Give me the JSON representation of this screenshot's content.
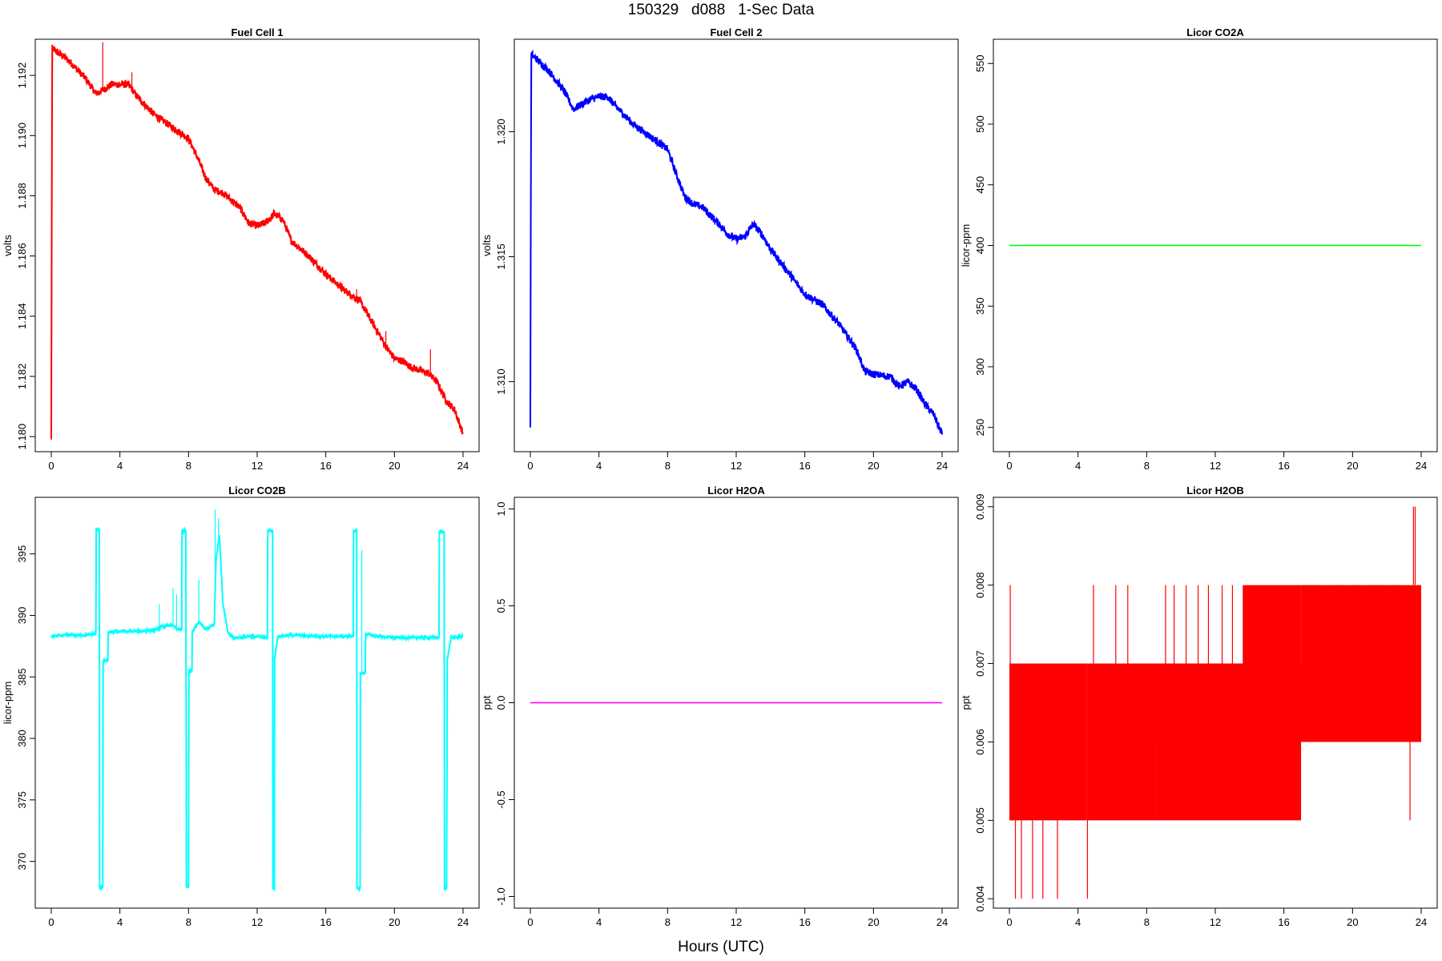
{
  "figure": {
    "title": "150329   d088   1-Sec Data",
    "xlabel": "Hours (UTC)"
  },
  "chart_data": [
    {
      "type": "line",
      "title": "Fuel Cell 1",
      "ylabel": "volts",
      "xlim": [
        0,
        24
      ],
      "ylim": [
        1.1795,
        1.1932
      ],
      "xticks": [
        0,
        4,
        8,
        12,
        16,
        20,
        24
      ],
      "yticks": [
        1.18,
        1.182,
        1.184,
        1.186,
        1.188,
        1.19,
        1.192
      ],
      "ytick_labels": [
        "1.180",
        "1.182",
        "1.184",
        "1.186",
        "1.188",
        "1.190",
        "1.192"
      ],
      "color": "#ff0000",
      "noise": 0.00012,
      "series": [
        {
          "x": [
            0,
            0.05,
            1,
            2,
            2.6,
            3,
            3.5,
            4,
            4.5,
            5,
            6,
            7,
            8,
            8.5,
            9,
            9.5,
            10,
            11,
            11.5,
            12,
            12.5,
            13,
            13.5,
            14,
            15,
            16,
            17,
            18,
            19,
            19.5,
            20,
            20.5,
            21,
            22,
            22.5,
            23,
            23.5,
            24
          ],
          "y": [
            1.1799,
            1.1929,
            1.1925,
            1.1919,
            1.1914,
            1.1915,
            1.1917,
            1.1917,
            1.1917,
            1.1913,
            1.1907,
            1.1903,
            1.1899,
            1.1893,
            1.1886,
            1.1882,
            1.1881,
            1.1876,
            1.1871,
            1.187,
            1.1871,
            1.1874,
            1.1872,
            1.1865,
            1.186,
            1.1854,
            1.1849,
            1.1845,
            1.1835,
            1.183,
            1.1826,
            1.1825,
            1.1823,
            1.1821,
            1.1818,
            1.1812,
            1.1809,
            1.1801
          ]
        }
      ],
      "spikes": [
        {
          "x": 3.0,
          "y": 1.1931
        },
        {
          "x": 4.7,
          "y": 1.1921
        },
        {
          "x": 19.5,
          "y": 1.1835
        },
        {
          "x": 22.1,
          "y": 1.1829
        },
        {
          "x": 17.8,
          "y": 1.1849
        }
      ]
    },
    {
      "type": "line",
      "title": "Fuel Cell 2",
      "ylabel": "volts",
      "xlim": [
        0,
        24
      ],
      "ylim": [
        1.3072,
        1.3237
      ],
      "xticks": [
        0,
        4,
        8,
        12,
        16,
        20,
        24
      ],
      "yticks": [
        1.31,
        1.315,
        1.32
      ],
      "ytick_labels": [
        "1.310",
        "1.315",
        "1.320"
      ],
      "color": "#0000ff",
      "noise": 0.00015,
      "series": [
        {
          "x": [
            0,
            0.05,
            1,
            2,
            2.5,
            3,
            3.5,
            4,
            4.5,
            5,
            6,
            7,
            8,
            8.5,
            9,
            9.5,
            10,
            11,
            11.5,
            12,
            12.5,
            13,
            13.5,
            14,
            15,
            16,
            17,
            18,
            19,
            19.5,
            20,
            21,
            21.5,
            22,
            22.5,
            23,
            23.5,
            24
          ],
          "y": [
            1.3083,
            1.3231,
            1.3225,
            1.3216,
            1.3209,
            1.3211,
            1.3213,
            1.3214,
            1.3214,
            1.321,
            1.3203,
            1.3198,
            1.3193,
            1.3183,
            1.3174,
            1.3171,
            1.317,
            1.3163,
            1.3159,
            1.3157,
            1.3158,
            1.3163,
            1.3159,
            1.3153,
            1.3144,
            1.3135,
            1.3131,
            1.3123,
            1.3113,
            1.3104,
            1.3103,
            1.3102,
            1.3098,
            1.31,
            1.3097,
            1.3091,
            1.3087,
            1.3079
          ]
        }
      ],
      "spikes": []
    },
    {
      "type": "line",
      "title": "Licor CO2A",
      "ylabel": "licor-ppm",
      "xlim": [
        0,
        24
      ],
      "ylim": [
        230,
        570
      ],
      "xticks": [
        0,
        4,
        8,
        12,
        16,
        20,
        24
      ],
      "yticks": [
        250,
        300,
        350,
        400,
        450,
        500,
        550
      ],
      "ytick_labels": [
        "250",
        "300",
        "350",
        "400",
        "450",
        "500",
        "550"
      ],
      "color": "#00ff00",
      "noise": 0,
      "series": [
        {
          "x": [
            0,
            24
          ],
          "y": [
            400,
            400
          ]
        }
      ],
      "spikes": []
    },
    {
      "type": "line",
      "title": "Licor CO2B",
      "ylabel": "licor-ppm",
      "xlim": [
        0,
        24
      ],
      "ylim": [
        366.2,
        399.6
      ],
      "xticks": [
        0,
        4,
        8,
        12,
        16,
        20,
        24
      ],
      "yticks": [
        370,
        375,
        380,
        385,
        390,
        395
      ],
      "ytick_labels": [
        "370",
        "375",
        "380",
        "385",
        "390",
        "395"
      ],
      "color": "#00ffff",
      "noise": 0.12,
      "series": [
        {
          "x": [
            0,
            1,
            2,
            2.6,
            2.62,
            2.8,
            2.82,
            3.0,
            3.02,
            3.3,
            3.32,
            4,
            5,
            6,
            6.5,
            7,
            7.5,
            7.6,
            7.62,
            7.85,
            7.87,
            8.0,
            8.02,
            8.2,
            8.22,
            8.6,
            9,
            9.5,
            9.6,
            9.8,
            10,
            10.3,
            10.6,
            11,
            12,
            12.6,
            12.62,
            12.9,
            12.92,
            13.0,
            13.02,
            13.2,
            14,
            16,
            17,
            17.6,
            17.62,
            17.8,
            17.82,
            18.0,
            18.02,
            18.3,
            18.32,
            19,
            20,
            21,
            22,
            22.6,
            22.62,
            22.9,
            22.92,
            23.05,
            23.07,
            23.3,
            24
          ],
          "y": [
            388.3,
            388.4,
            388.4,
            388.5,
            397.0,
            397.0,
            367.9,
            367.9,
            386.3,
            386.3,
            388.6,
            388.7,
            388.7,
            388.8,
            389.1,
            389.2,
            388.8,
            388.8,
            396.9,
            396.9,
            367.9,
            367.9,
            385.5,
            385.5,
            388.7,
            389.5,
            388.9,
            389.3,
            394.5,
            396.5,
            391.0,
            388.6,
            388.2,
            388.2,
            388.3,
            388.2,
            396.9,
            396.9,
            367.8,
            367.8,
            386.5,
            388.3,
            388.4,
            388.3,
            388.3,
            388.3,
            396.9,
            396.9,
            367.8,
            367.8,
            385.3,
            385.3,
            388.5,
            388.3,
            388.2,
            388.2,
            388.2,
            388.2,
            396.8,
            396.8,
            367.8,
            367.8,
            386.3,
            388.2,
            388.3
          ]
        }
      ],
      "spikes": [
        {
          "x": 6.3,
          "y": 390.9
        },
        {
          "x": 7.1,
          "y": 392.2
        },
        {
          "x": 7.3,
          "y": 391.7
        },
        {
          "x": 8.6,
          "y": 392.9
        },
        {
          "x": 9.55,
          "y": 398.6
        },
        {
          "x": 9.75,
          "y": 397.9
        },
        {
          "x": 18.1,
          "y": 395.3
        }
      ]
    },
    {
      "type": "line",
      "title": "Licor H2OA",
      "ylabel": "ppt",
      "xlim": [
        0,
        24
      ],
      "ylim": [
        -1.06,
        1.06
      ],
      "xticks": [
        0,
        4,
        8,
        12,
        16,
        20,
        24
      ],
      "yticks": [
        -1.0,
        -0.5,
        0.0,
        0.5,
        1.0
      ],
      "ytick_labels": [
        "-1.0",
        "-0.5",
        "0.0",
        "0.5",
        "1.0"
      ],
      "color": "#ff00ff",
      "noise": 0,
      "series": [
        {
          "x": [
            0,
            24
          ],
          "y": [
            0,
            0
          ]
        }
      ],
      "spikes": []
    },
    {
      "type": "line",
      "title": "Licor H2OB",
      "ylabel": "ppt",
      "xlim": [
        0,
        24
      ],
      "ylim": [
        0.00388,
        0.00912
      ],
      "xticks": [
        0,
        4,
        8,
        12,
        16,
        20,
        24
      ],
      "yticks": [
        0.004,
        0.005,
        0.006,
        0.007,
        0.008,
        0.009
      ],
      "ytick_labels": [
        "0.004",
        "0.005",
        "0.006",
        "0.007",
        "0.008",
        "0.009"
      ],
      "color": "#ff0000",
      "noise": 0,
      "series": [],
      "band": [
        {
          "x0": 0,
          "x1": 3.5,
          "lo": 0.005,
          "hi": 0.007
        },
        {
          "x0": 3.5,
          "x1": 4.5,
          "lo": 0.005,
          "hi": 0.007
        },
        {
          "x0": 4.5,
          "x1": 8.5,
          "lo": 0.005,
          "hi": 0.007
        },
        {
          "x0": 8.5,
          "x1": 17.0,
          "lo": 0.005,
          "hi": 0.007
        },
        {
          "x0": 17.0,
          "x1": 24,
          "lo": 0.006,
          "hi": 0.008
        },
        {
          "x0": 6.6,
          "x1": 24,
          "lo": 0.006,
          "hi": 0.007
        },
        {
          "x0": 13.6,
          "x1": 17.0,
          "lo": 0.006,
          "hi": 0.008
        }
      ],
      "spikes": [
        {
          "x": 0.05,
          "y0": 0.005,
          "y1": 0.008
        },
        {
          "x": 0.35,
          "y0": 0.004,
          "y1": 0.005
        },
        {
          "x": 0.7,
          "y0": 0.004,
          "y1": 0.005
        },
        {
          "x": 1.35,
          "y0": 0.004,
          "y1": 0.005
        },
        {
          "x": 1.95,
          "y0": 0.004,
          "y1": 0.005
        },
        {
          "x": 2.8,
          "y0": 0.004,
          "y1": 0.005
        },
        {
          "x": 4.55,
          "y0": 0.004,
          "y1": 0.005
        },
        {
          "x": 4.9,
          "y0": 0.007,
          "y1": 0.008
        },
        {
          "x": 6.2,
          "y0": 0.007,
          "y1": 0.008
        },
        {
          "x": 6.9,
          "y0": 0.007,
          "y1": 0.008
        },
        {
          "x": 9.1,
          "y0": 0.007,
          "y1": 0.008
        },
        {
          "x": 9.6,
          "y0": 0.007,
          "y1": 0.008
        },
        {
          "x": 10.3,
          "y0": 0.007,
          "y1": 0.008
        },
        {
          "x": 11.0,
          "y0": 0.007,
          "y1": 0.008
        },
        {
          "x": 11.6,
          "y0": 0.007,
          "y1": 0.008
        },
        {
          "x": 12.4,
          "y0": 0.007,
          "y1": 0.008
        },
        {
          "x": 13.0,
          "y0": 0.007,
          "y1": 0.008
        },
        {
          "x": 23.35,
          "y0": 0.005,
          "y1": 0.006
        },
        {
          "x": 23.55,
          "y0": 0.008,
          "y1": 0.009
        },
        {
          "x": 23.65,
          "y0": 0.008,
          "y1": 0.009
        }
      ]
    }
  ]
}
